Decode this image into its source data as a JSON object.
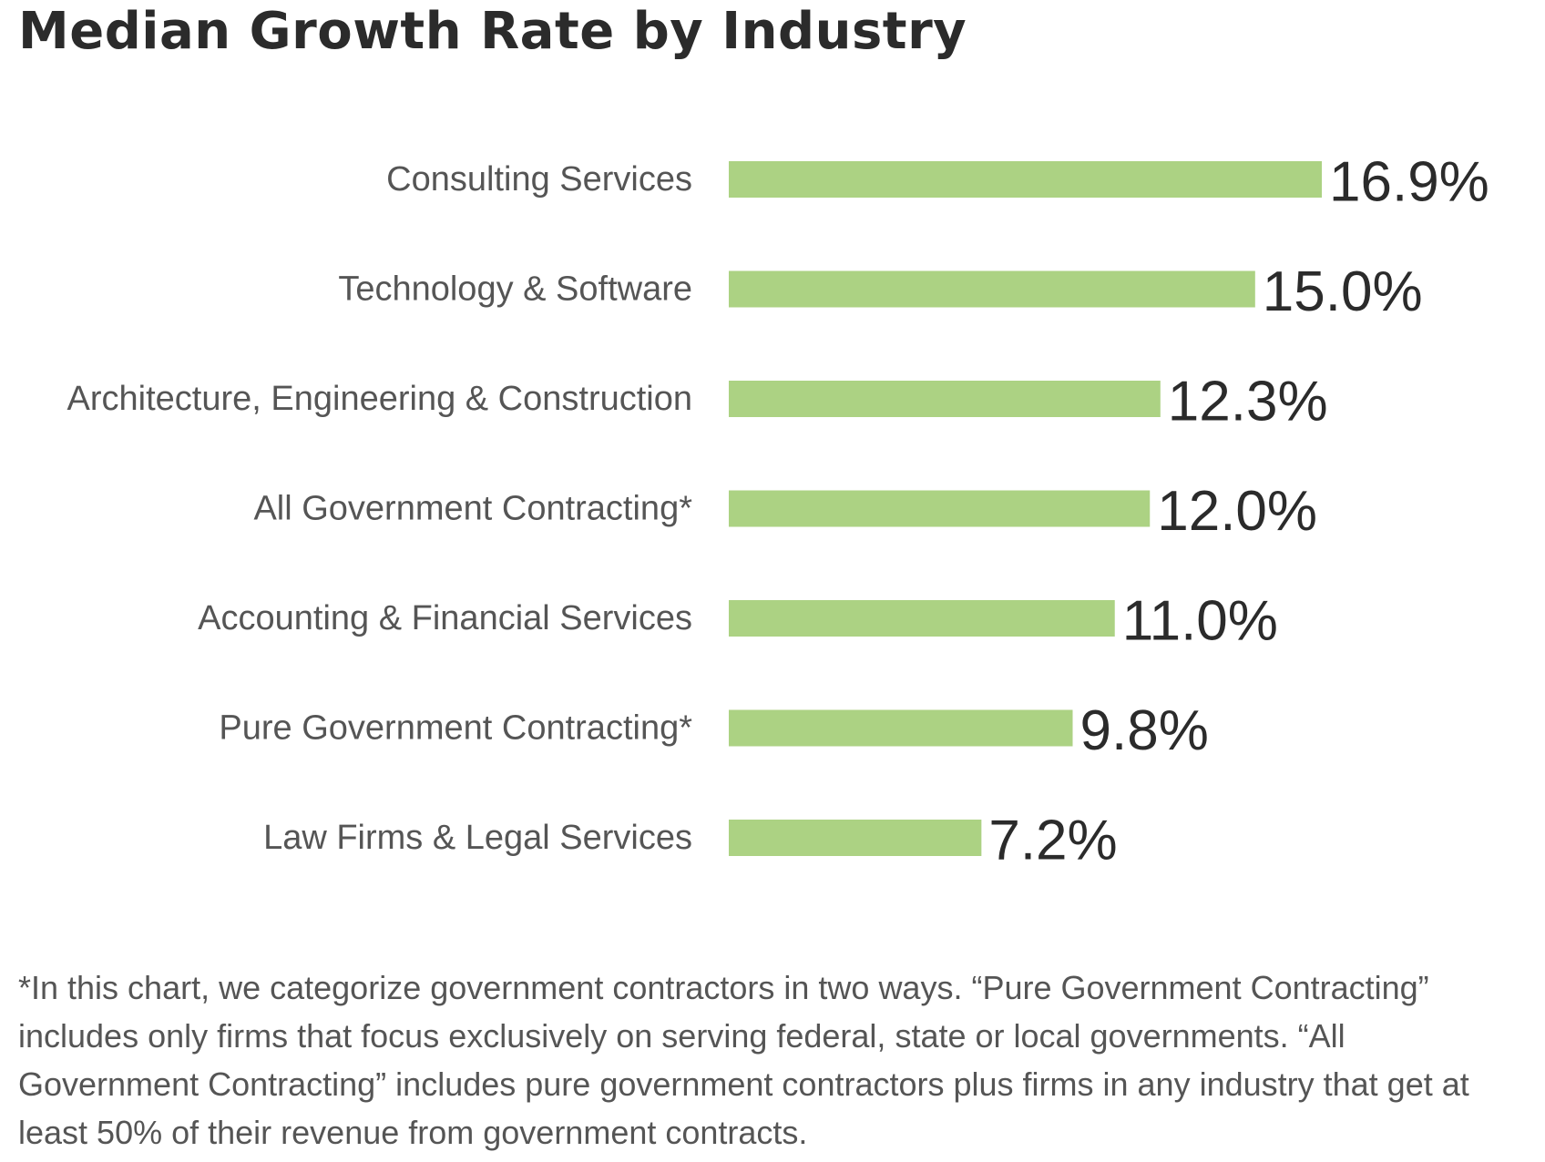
{
  "title": "Median Growth Rate by Industry",
  "chart_data": {
    "type": "bar",
    "orientation": "horizontal",
    "categories": [
      "Consulting Services",
      "Technology & Software",
      "Architecture, Engineering & Construction",
      "All Government Contracting*",
      "Accounting & Financial Services",
      "Pure Government Contracting*",
      "Law Firms & Legal Services"
    ],
    "values": [
      16.9,
      15.0,
      12.3,
      12.0,
      11.0,
      9.8,
      7.2
    ],
    "value_labels": [
      "16.9%",
      "15.0%",
      "12.3%",
      "12.0%",
      "11.0%",
      "9.8%",
      "7.2%"
    ],
    "title": "Median Growth Rate by Industry",
    "xlabel": "",
    "ylabel": "",
    "xlim": [
      0,
      16.9
    ],
    "grid": false,
    "bar_color": "#acd283"
  },
  "footnote": "*In this chart, we categorize government contractors in two ways. “Pure Government Contracting” includes only firms that focus exclusively on serving federal, state or local governments. “All Government Contracting” includes pure government contractors plus firms in any industry that get at least 50% of their revenue from government contracts."
}
